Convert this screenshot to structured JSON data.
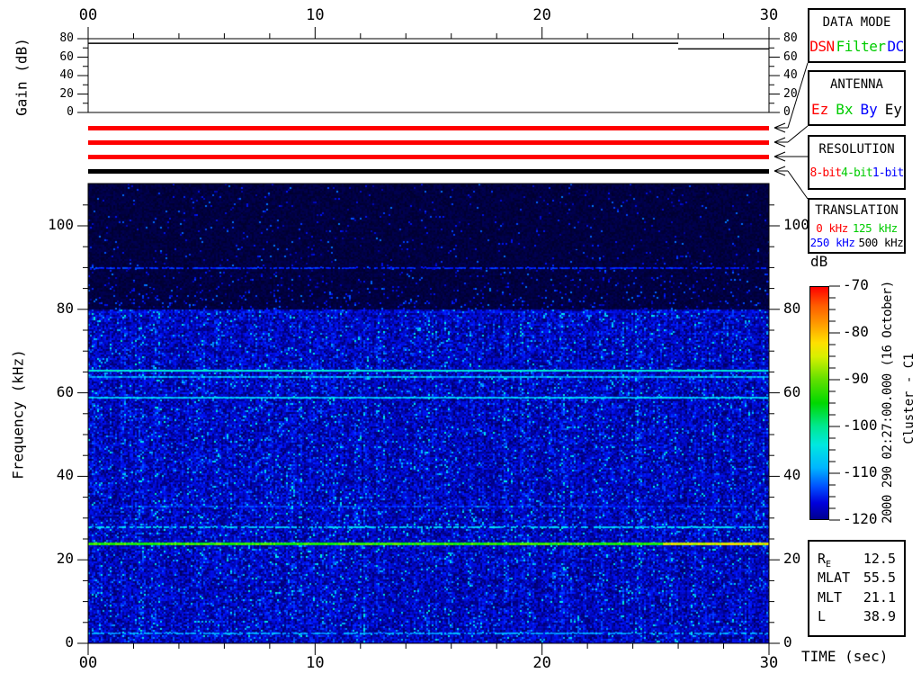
{
  "axes": {
    "time": {
      "title": "TIME (sec)",
      "majors": [
        {
          "v": 0,
          "label": "00"
        },
        {
          "v": 10,
          "label": "10"
        },
        {
          "v": 20,
          "label": "20"
        },
        {
          "v": 30,
          "label": "30"
        }
      ],
      "minor_step": 2
    },
    "gain": {
      "title": "Gain (dB)",
      "majors": [
        {
          "v": 0,
          "label": "0"
        },
        {
          "v": 20,
          "label": "20"
        },
        {
          "v": 40,
          "label": "40"
        },
        {
          "v": 60,
          "label": "60"
        },
        {
          "v": 80,
          "label": "80"
        }
      ],
      "minor_step": 10
    },
    "freq": {
      "title": "Frequency (kHz)",
      "majors": [
        {
          "v": 0,
          "label": "0"
        },
        {
          "v": 20,
          "label": "20"
        },
        {
          "v": 40,
          "label": "40"
        },
        {
          "v": 60,
          "label": "60"
        },
        {
          "v": 80,
          "label": "80"
        },
        {
          "v": 100,
          "label": "100"
        }
      ],
      "minor_step": 5
    },
    "colorbar": {
      "title": "dB",
      "majors": [
        {
          "v": -70,
          "label": "-70"
        },
        {
          "v": -80,
          "label": "-80"
        },
        {
          "v": -90,
          "label": "-90"
        },
        {
          "v": -100,
          "label": "-100"
        },
        {
          "v": -110,
          "label": "-110"
        },
        {
          "v": -120,
          "label": "-120"
        }
      ],
      "minor_step": 2.5
    }
  },
  "panels": [
    {
      "title": "DATA MODE",
      "options": [
        {
          "label": "DSN",
          "color": "#ff0000"
        },
        {
          "label": "Filter",
          "color": "#00cc00"
        },
        {
          "label": "DC",
          "color": "#0000ff"
        }
      ]
    },
    {
      "title": "ANTENNA",
      "options": [
        {
          "label": "Ez",
          "color": "#ff0000"
        },
        {
          "label": "Bx",
          "color": "#00cc00"
        },
        {
          "label": "By",
          "color": "#0000ff"
        },
        {
          "label": "Ey",
          "color": "#000000"
        }
      ]
    },
    {
      "title": "RESOLUTION",
      "options": [
        {
          "label": "8-bit",
          "color": "#ff0000"
        },
        {
          "label": "4-bit",
          "color": "#00cc00"
        },
        {
          "label": "1-bit",
          "color": "#0000ff"
        }
      ]
    },
    {
      "title": "TRANSLATION",
      "options": [
        {
          "label": "0 kHz",
          "color": "#ff0000"
        },
        {
          "label": "125 kHz",
          "color": "#00cc00"
        },
        {
          "label": "250 kHz",
          "color": "#0000ff"
        },
        {
          "label": "500 kHz",
          "color": "#000000"
        }
      ]
    }
  ],
  "status_bars": [
    {
      "panel": "DATA MODE",
      "selected": "DSN",
      "color": "#ff0000"
    },
    {
      "panel": "ANTENNA",
      "selected": "Ez",
      "color": "#ff0000"
    },
    {
      "panel": "RESOLUTION",
      "selected": "8-bit",
      "color": "#ff0000"
    },
    {
      "panel": "TRANSLATION",
      "selected": "500 kHz",
      "color": "#000000"
    }
  ],
  "annotations": {
    "datetime": "2000 290 02:27:00.000 (16 October)",
    "spacecraft": "Cluster - C1"
  },
  "info_table": {
    "rows": [
      {
        "label": "R",
        "sub": "E",
        "value": "12.5"
      },
      {
        "label": "MLAT",
        "sub": "",
        "value": "55.5"
      },
      {
        "label": "MLT",
        "sub": "",
        "value": "21.1"
      },
      {
        "label": "L",
        "sub": "",
        "value": "38.9"
      }
    ]
  },
  "chart_data": {
    "type": "heatmap",
    "title": "",
    "xlabel": "TIME (sec)",
    "ylabel": "Frequency (kHz)",
    "xlim": [
      0,
      30
    ],
    "ylim": [
      0,
      110
    ],
    "grid": false,
    "colorbar": {
      "label": "dB",
      "max": -70,
      "min": -120,
      "ticks": [
        -70,
        -80,
        -90,
        -100,
        -110,
        -120
      ],
      "gradient_top_to_bottom": [
        "#ff0000 0%",
        "#ff5c00 8%",
        "#ff9c00 16%",
        "#ffe000 24%",
        "#d8f000 30%",
        "#60e000 40%",
        "#00d800 50%",
        "#00e890 60%",
        "#00e8e0 68%",
        "#00b4ff 78%",
        "#0050ff 86%",
        "#0000dc 93%",
        "#000090 100%"
      ]
    },
    "gain_trace": {
      "units": "dB",
      "range": [
        0,
        80
      ],
      "segments": [
        {
          "t_start": 0,
          "t_end": 26,
          "value": 75
        },
        {
          "t_start": 26,
          "t_end": 30,
          "value": 69
        }
      ]
    },
    "background": {
      "noise_floor_db_below_80khz": -114,
      "noise_floor_db_above_80khz": -120
    },
    "spectral_lines": [
      {
        "freq_khz": 90,
        "approx_level_db": -113,
        "intensity": 0.3,
        "width": 2,
        "dashed": true
      },
      {
        "freq_khz": 79.5,
        "approx_level_db": -113,
        "intensity": 0.27,
        "width": 2,
        "dashed": true
      },
      {
        "freq_khz": 65.5,
        "approx_level_db": -104,
        "intensity": 0.52,
        "width": 2,
        "dashed": false
      },
      {
        "freq_khz": 64,
        "approx_level_db": -107,
        "intensity": 0.42,
        "width": 2,
        "dashed": false
      },
      {
        "freq_khz": 59,
        "approx_level_db": -106,
        "intensity": 0.46,
        "width": 2,
        "dashed": false
      },
      {
        "freq_khz": 33,
        "approx_level_db": -112,
        "intensity": 0.32,
        "width": 2,
        "dashed": true
      },
      {
        "freq_khz": 28,
        "approx_level_db": -106,
        "intensity": 0.46,
        "width": 2,
        "dashed": true
      },
      {
        "freq_khz": 24,
        "approx_level_db": -90,
        "intensity": 0.72,
        "width": 3,
        "dashed": false,
        "change_at_s": 25.3,
        "intensity_after": 0.84,
        "approx_level_db_after": -82
      },
      {
        "freq_khz": 2.5,
        "approx_level_db": -107,
        "intensity": 0.42,
        "width": 2,
        "dashed": true
      }
    ]
  }
}
